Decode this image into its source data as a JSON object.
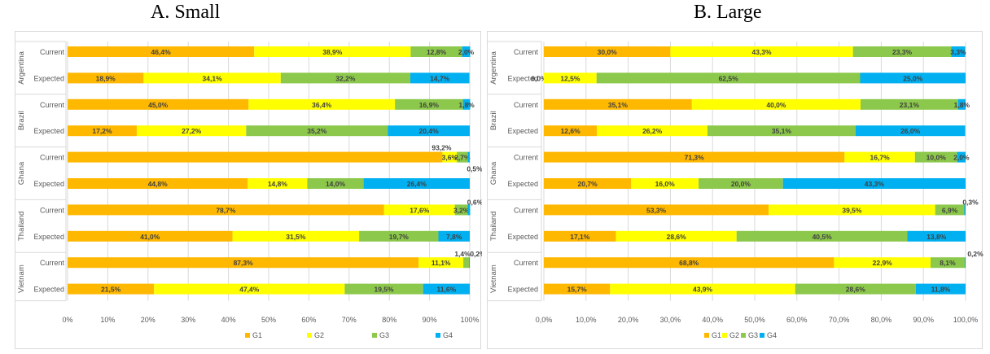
{
  "panels": [
    {
      "title": "A. Small"
    },
    {
      "title": "B. Large"
    }
  ],
  "colors": {
    "G1": "#FFB800",
    "G2": "#FFFF00",
    "G3": "#8CC84B",
    "G4": "#00B0F0",
    "grid": "#d9d9d9",
    "label": "#404040"
  },
  "chart_data": [
    {
      "type": "bar",
      "orientation": "horizontal",
      "stacked": "percent",
      "title": "A. Small",
      "groups": [
        "Argentina",
        "Brazil",
        "Ghana",
        "Thailand",
        "Vietnam"
      ],
      "categories": [
        "Current",
        "Expected"
      ],
      "series_names": [
        "G1",
        "G2",
        "G3",
        "G4"
      ],
      "values": {
        "Argentina": {
          "Current": [
            46.4,
            38.9,
            12.8,
            2.0
          ],
          "Expected": [
            18.9,
            34.1,
            32.2,
            14.7
          ]
        },
        "Brazil": {
          "Current": [
            45.0,
            36.4,
            16.9,
            1.8
          ],
          "Expected": [
            17.2,
            27.2,
            35.2,
            20.4
          ]
        },
        "Ghana": {
          "Current": [
            93.2,
            3.6,
            2.7,
            0.5
          ],
          "Expected": [
            44.8,
            14.8,
            14.0,
            26.4
          ]
        },
        "Thailand": {
          "Current": [
            78.7,
            17.6,
            3.2,
            0.6
          ],
          "Expected": [
            41.0,
            31.5,
            19.7,
            7.8
          ]
        },
        "Vietnam": {
          "Current": [
            87.3,
            11.1,
            1.4,
            0.2
          ],
          "Expected": [
            21.5,
            47.4,
            19.5,
            11.6
          ]
        }
      },
      "data_labels": {
        "Argentina": {
          "Current": [
            "46,4%",
            "38,9%",
            "12,8%",
            "2,0%"
          ],
          "Expected": [
            "18,9%",
            "34,1%",
            "32,2%",
            "14,7%"
          ]
        },
        "Brazil": {
          "Current": [
            "45,0%",
            "36,4%",
            "16,9%",
            "1,8%"
          ],
          "Expected": [
            "17,2%",
            "27,2%",
            "35,2%",
            "20,4%"
          ]
        },
        "Ghana": {
          "Current": [
            "93,2%",
            "3,6%",
            "2,7%",
            "0,5%"
          ],
          "Expected": [
            "44,8%",
            "14,8%",
            "14,0%",
            "26,4%"
          ]
        },
        "Thailand": {
          "Current": [
            "78,7%",
            "17,6%",
            "3,2%",
            "0,6%"
          ],
          "Expected": [
            "41,0%",
            "31,5%",
            "19,7%",
            "7,8%"
          ]
        },
        "Vietnam": {
          "Current": [
            "87,3%",
            "11,1%",
            "1,4%",
            "0,2%"
          ],
          "Expected": [
            "21,5%",
            "47,4%",
            "19,5%",
            "11,6%"
          ]
        }
      },
      "xlim": [
        0,
        100
      ],
      "xticks": [
        "0%",
        "10%",
        "20%",
        "30%",
        "40%",
        "50%",
        "60%",
        "70%",
        "80%",
        "90%",
        "100%"
      ],
      "grid": true,
      "legend": [
        "G1",
        "G2",
        "G3",
        "G4"
      ],
      "legend_position": "bottom"
    },
    {
      "type": "bar",
      "orientation": "horizontal",
      "stacked": "percent",
      "title": "B. Large",
      "groups": [
        "Argentina",
        "Brazil",
        "Ghana",
        "Thailand",
        "Vietnam"
      ],
      "categories": [
        "Current",
        "Expected"
      ],
      "series_names": [
        "G1",
        "G2",
        "G3",
        "G4"
      ],
      "values": {
        "Argentina": {
          "Current": [
            30.0,
            43.3,
            23.3,
            3.3
          ],
          "Expected": [
            0.0,
            12.5,
            62.5,
            25.0
          ]
        },
        "Brazil": {
          "Current": [
            35.1,
            40.0,
            23.1,
            1.8
          ],
          "Expected": [
            12.6,
            26.2,
            35.1,
            26.0
          ]
        },
        "Ghana": {
          "Current": [
            71.3,
            16.7,
            10.0,
            2.0
          ],
          "Expected": [
            20.7,
            16.0,
            20.0,
            43.3
          ]
        },
        "Thailand": {
          "Current": [
            53.3,
            39.5,
            6.9,
            0.3
          ],
          "Expected": [
            17.1,
            28.6,
            40.5,
            13.8
          ]
        },
        "Vietnam": {
          "Current": [
            68.8,
            22.9,
            8.1,
            0.2
          ],
          "Expected": [
            15.7,
            43.9,
            28.6,
            11.8
          ]
        }
      },
      "data_labels": {
        "Argentina": {
          "Current": [
            "30,0%",
            "43,3%",
            "23,3%",
            "3,3%"
          ],
          "Expected": [
            "0,0%",
            "12,5%",
            "62,5%",
            "25,0%"
          ]
        },
        "Brazil": {
          "Current": [
            "35,1%",
            "40,0%",
            "23,1%",
            "1,8%"
          ],
          "Expected": [
            "12,6%",
            "26,2%",
            "35,1%",
            "26,0%"
          ]
        },
        "Ghana": {
          "Current": [
            "71,3%",
            "16,7%",
            "10,0%",
            "2,0%"
          ],
          "Expected": [
            "20,7%",
            "16,0%",
            "20,0%",
            "43,3%"
          ]
        },
        "Thailand": {
          "Current": [
            "53,3%",
            "39,5%",
            "6,9%",
            "0,3%"
          ],
          "Expected": [
            "17,1%",
            "28,6%",
            "40,5%",
            "13,8%"
          ]
        },
        "Vietnam": {
          "Current": [
            "68,8%",
            "22,9%",
            "8,1%",
            "0,2%"
          ],
          "Expected": [
            "15,7%",
            "43,9%",
            "28,6%",
            "11,8%"
          ]
        }
      },
      "xlim": [
        0,
        100
      ],
      "xticks": [
        "0,0%",
        "10,0%",
        "20,0%",
        "30,0%",
        "40,0%",
        "50,0%",
        "60,0%",
        "70,0%",
        "80,0%",
        "90,0%",
        "100,0%"
      ],
      "grid": true,
      "legend": [
        "G1",
        "G2",
        "G3",
        "G4"
      ],
      "legend_position": "bottom"
    }
  ]
}
